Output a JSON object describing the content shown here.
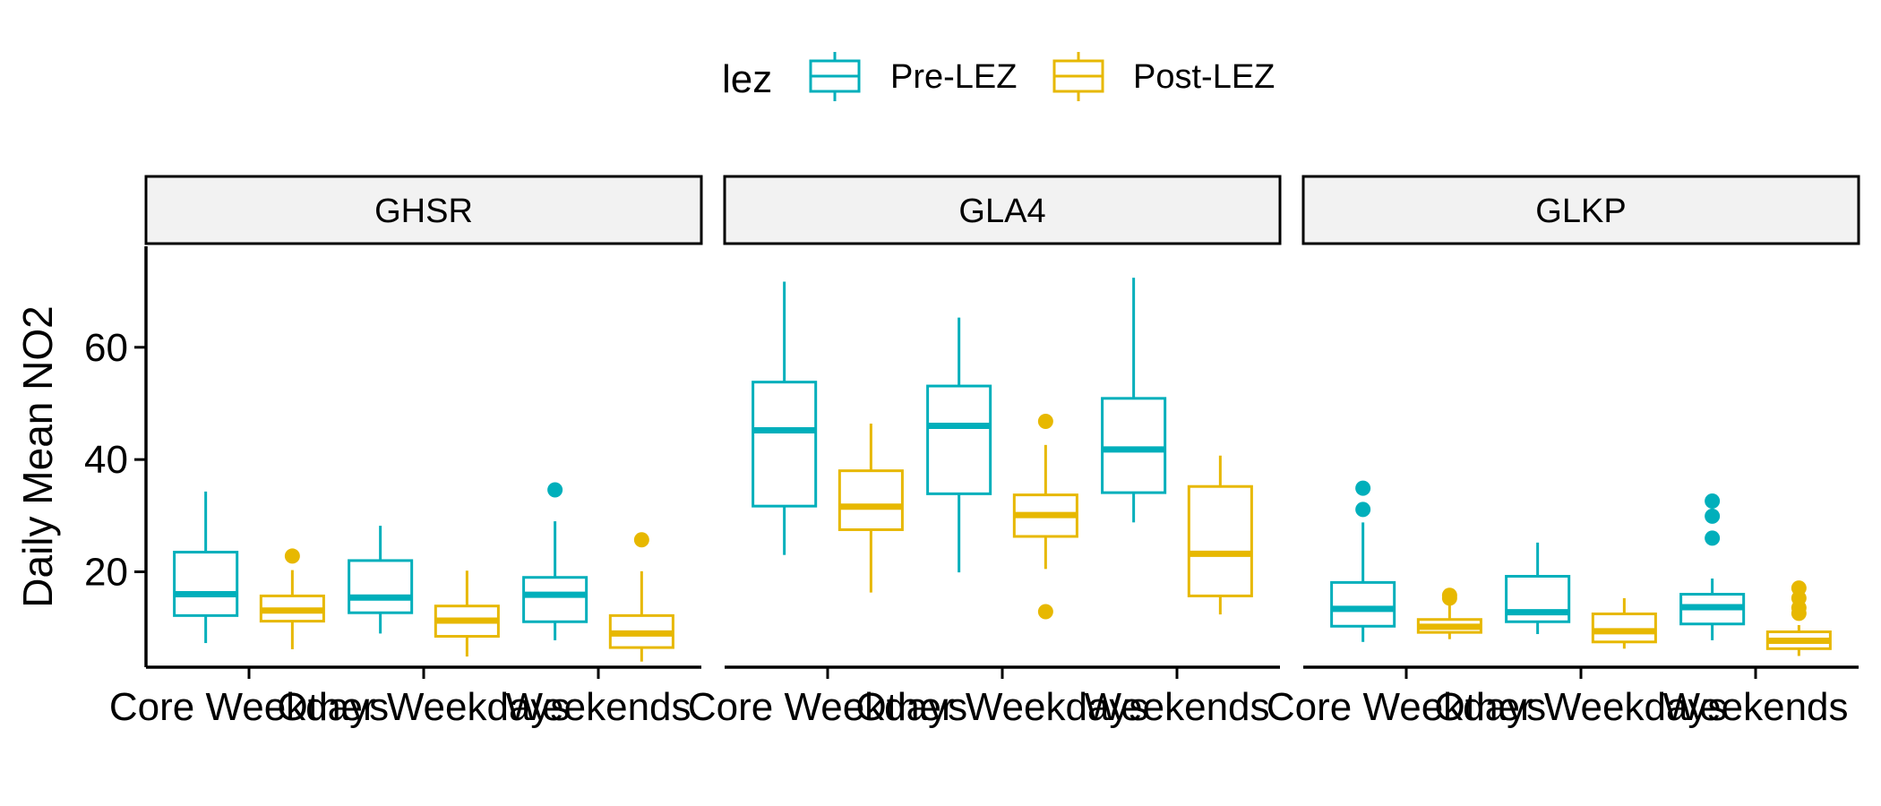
{
  "chart_data": {
    "type": "boxplot",
    "title": "",
    "xlabel": "",
    "ylabel": "Daily Mean NO2",
    "ylim": [
      3,
      78
    ],
    "y_ticks": [
      20,
      40,
      60
    ],
    "grid": false,
    "legend": {
      "title": "lez",
      "position": "top",
      "entries": [
        {
          "name": "Pre-LEZ",
          "color": "#00afbb"
        },
        {
          "name": "Post-LEZ",
          "color": "#e7b800"
        }
      ]
    },
    "categories": [
      "Core Weekdays",
      "Other Weekdays",
      "Weekends"
    ],
    "panels": [
      {
        "name": "GHSR",
        "groups": [
          {
            "category": "Core Weekdays",
            "series": "Pre-LEZ",
            "whisker_low": 7.3,
            "q1": 12.2,
            "median": 16.0,
            "q3": 23.5,
            "whisker_high": 34.3,
            "outliers": []
          },
          {
            "category": "Core Weekdays",
            "series": "Post-LEZ",
            "whisker_low": 6.2,
            "q1": 11.2,
            "median": 13.1,
            "q3": 15.7,
            "whisker_high": 20.3,
            "outliers": [
              22.8
            ]
          },
          {
            "category": "Other Weekdays",
            "series": "Pre-LEZ",
            "whisker_low": 9.0,
            "q1": 12.7,
            "median": 15.4,
            "q3": 22.0,
            "whisker_high": 28.2,
            "outliers": []
          },
          {
            "category": "Other Weekdays",
            "series": "Post-LEZ",
            "whisker_low": 4.9,
            "q1": 8.5,
            "median": 11.3,
            "q3": 13.9,
            "whisker_high": 20.2,
            "outliers": []
          },
          {
            "category": "Weekends",
            "series": "Pre-LEZ",
            "whisker_low": 7.8,
            "q1": 11.1,
            "median": 15.9,
            "q3": 19.0,
            "whisker_high": 29.0,
            "outliers": [
              34.6
            ]
          },
          {
            "category": "Weekends",
            "series": "Post-LEZ",
            "whisker_low": 4.0,
            "q1": 6.5,
            "median": 9.0,
            "q3": 12.2,
            "whisker_high": 20.1,
            "outliers": [
              25.7
            ]
          }
        ]
      },
      {
        "name": "GLA4",
        "groups": [
          {
            "category": "Core Weekdays",
            "series": "Pre-LEZ",
            "whisker_low": 23.0,
            "q1": 31.7,
            "median": 45.2,
            "q3": 53.8,
            "whisker_high": 71.7,
            "outliers": []
          },
          {
            "category": "Core Weekdays",
            "series": "Post-LEZ",
            "whisker_low": 16.3,
            "q1": 27.5,
            "median": 31.6,
            "q3": 38.0,
            "whisker_high": 46.4,
            "outliers": []
          },
          {
            "category": "Other Weekdays",
            "series": "Pre-LEZ",
            "whisker_low": 19.9,
            "q1": 33.9,
            "median": 46.0,
            "q3": 53.1,
            "whisker_high": 65.3,
            "outliers": []
          },
          {
            "category": "Other Weekdays",
            "series": "Post-LEZ",
            "whisker_low": 20.5,
            "q1": 26.3,
            "median": 30.1,
            "q3": 33.7,
            "whisker_high": 42.6,
            "outliers": [
              46.8,
              12.9
            ]
          },
          {
            "category": "Weekends",
            "series": "Pre-LEZ",
            "whisker_low": 28.8,
            "q1": 34.1,
            "median": 41.8,
            "q3": 50.9,
            "whisker_high": 72.4,
            "outliers": []
          },
          {
            "category": "Weekends",
            "series": "Post-LEZ",
            "whisker_low": 12.4,
            "q1": 15.7,
            "median": 23.2,
            "q3": 35.2,
            "whisker_high": 40.7,
            "outliers": []
          }
        ]
      },
      {
        "name": "GLKP",
        "groups": [
          {
            "category": "Core Weekdays",
            "series": "Pre-LEZ",
            "whisker_low": 7.5,
            "q1": 10.3,
            "median": 13.4,
            "q3": 18.1,
            "whisker_high": 28.8,
            "outliers": [
              34.9,
              31.1
            ]
          },
          {
            "category": "Core Weekdays",
            "series": "Post-LEZ",
            "whisker_low": 8.0,
            "q1": 9.2,
            "median": 10.2,
            "q3": 11.5,
            "whisker_high": 14.3,
            "outliers": [
              15.8,
              15.3
            ]
          },
          {
            "category": "Other Weekdays",
            "series": "Pre-LEZ",
            "whisker_low": 8.9,
            "q1": 11.1,
            "median": 12.8,
            "q3": 19.2,
            "whisker_high": 25.2,
            "outliers": []
          },
          {
            "category": "Other Weekdays",
            "series": "Post-LEZ",
            "whisker_low": 6.3,
            "q1": 7.5,
            "median": 9.4,
            "q3": 12.5,
            "whisker_high": 15.3,
            "outliers": []
          },
          {
            "category": "Weekends",
            "series": "Pre-LEZ",
            "whisker_low": 7.8,
            "q1": 10.7,
            "median": 13.7,
            "q3": 16.0,
            "whisker_high": 18.8,
            "outliers": [
              32.6,
              29.9,
              26.0
            ]
          },
          {
            "category": "Weekends",
            "series": "Post-LEZ",
            "whisker_low": 5.0,
            "q1": 6.3,
            "median": 7.7,
            "q3": 9.3,
            "whisker_high": 10.5,
            "outliers": [
              17.1,
              15.3,
              13.6,
              12.6
            ]
          }
        ]
      }
    ]
  }
}
